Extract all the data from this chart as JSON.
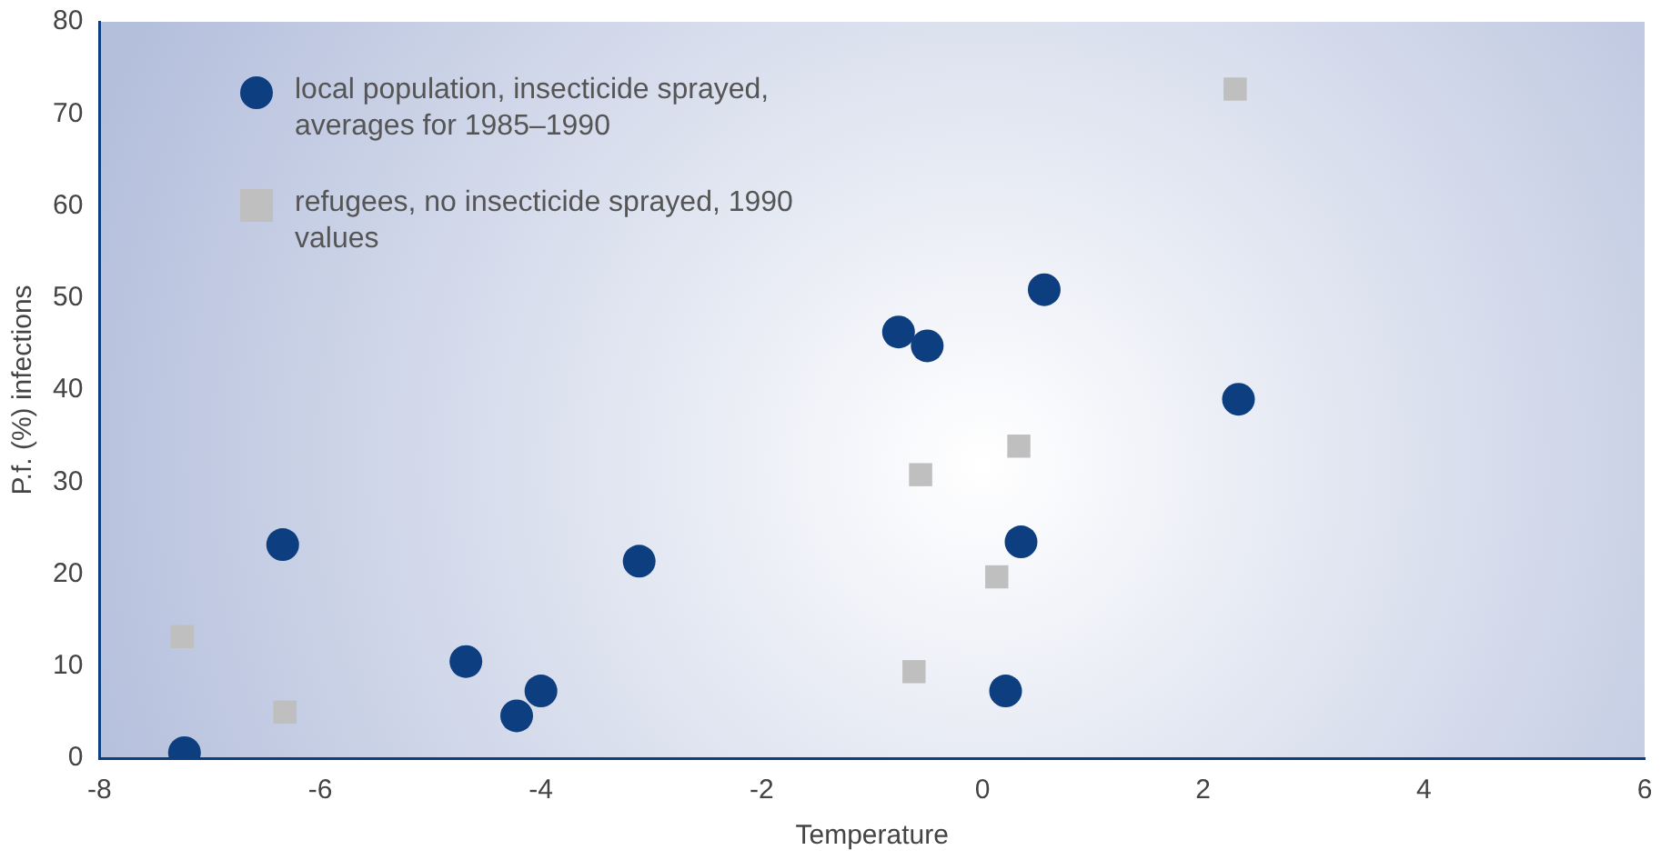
{
  "chart_data": {
    "type": "scatter",
    "xlabel": "Temperature",
    "ylabel": "P.f. (%) infections",
    "xlim": [
      -8,
      6
    ],
    "xticks": [
      -8,
      -6,
      -4,
      -2,
      0,
      2,
      4,
      6
    ],
    "ylim": [
      0,
      80
    ],
    "yticks": [
      0,
      10,
      20,
      30,
      40,
      50,
      60,
      70,
      80
    ],
    "grid": false,
    "legend": "top left",
    "series": [
      {
        "name": "local population, insecticide sprayed, averages for 1985–1990",
        "color": "#0d3e7f",
        "marker": "circle",
        "x": [
          -7.23,
          -6.34,
          -4.68,
          -4.22,
          -4.0,
          -3.11,
          -0.76,
          -0.5,
          0.56,
          0.35,
          0.21,
          2.32
        ],
        "values": [
          0.6,
          23.2,
          10.5,
          4.6,
          7.3,
          21.4,
          46.3,
          44.8,
          50.9,
          23.5,
          7.3,
          39.0
        ]
      },
      {
        "name": "refugees, no insecticide sprayed, 1990 values",
        "color": "#bfbfbf",
        "marker": "square",
        "x": [
          -7.25,
          -6.32,
          -0.56,
          0.33,
          0.13,
          -0.62,
          2.29
        ],
        "values": [
          13.2,
          5.0,
          30.8,
          33.9,
          19.7,
          9.4,
          72.7
        ]
      }
    ]
  }
}
